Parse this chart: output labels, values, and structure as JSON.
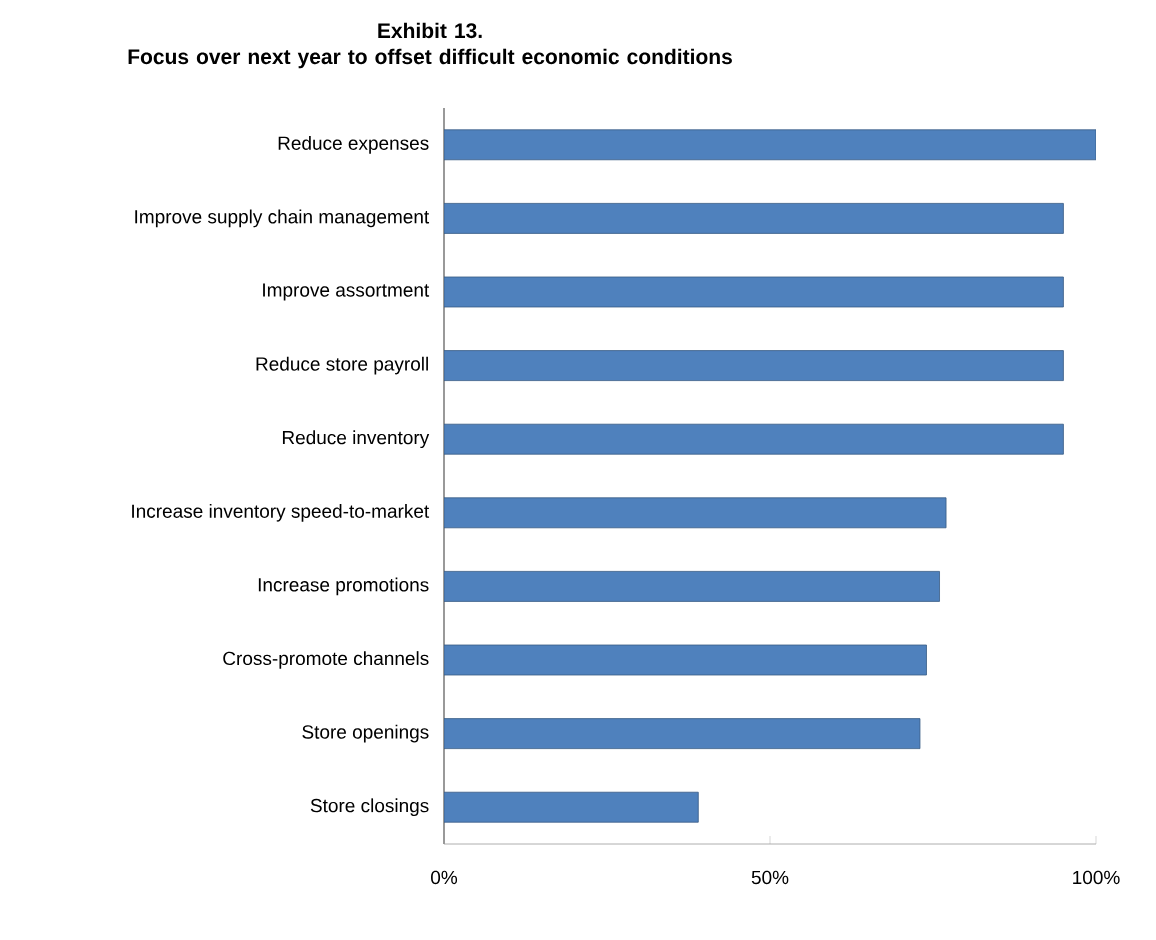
{
  "chart_data": {
    "type": "bar",
    "orientation": "horizontal",
    "title": "Exhibit 13.",
    "subtitle": "Focus over next year to offset difficult economic conditions",
    "categories": [
      "Reduce expenses",
      "Improve supply chain management",
      "Improve assortment",
      "Reduce store payroll",
      "Reduce inventory",
      "Increase inventory speed-to-market",
      "Increase promotions",
      "Cross-promote channels",
      "Store openings",
      "Store closings"
    ],
    "values": [
      100,
      95,
      95,
      95,
      95,
      77,
      76,
      74,
      73,
      39
    ],
    "color": "#4f81bd",
    "xlim": [
      0,
      100
    ],
    "xticks": [
      {
        "value": 0,
        "label": "0%"
      },
      {
        "value": 50,
        "label": "50%"
      },
      {
        "value": 100,
        "label": "100%"
      }
    ],
    "grid": false
  }
}
